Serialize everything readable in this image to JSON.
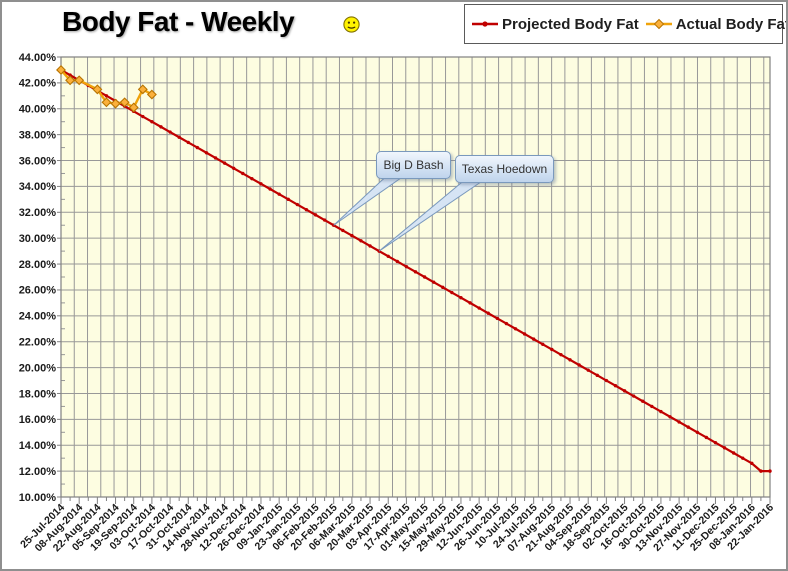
{
  "title": "Body Fat - Weekly",
  "icons": {
    "title_emoticon": "smiley-face"
  },
  "legend": {
    "position": "top-right",
    "items": [
      {
        "label": "Projected Body Fat",
        "marker": "line-dot"
      },
      {
        "label": "Actual Body Fat",
        "marker": "line-diamond"
      }
    ]
  },
  "chart_data": {
    "type": "line",
    "title": "Body Fat - Weekly",
    "x_axis": {
      "unit": "weeks since 25-Jul-2014",
      "tick_interval_weeks": 2,
      "tick_labels": [
        "25-Jul-2014",
        "08-Aug-2014",
        "22-Aug-2014",
        "05-Sep-2014",
        "19-Sep-2014",
        "03-Oct-2014",
        "17-Oct-2014",
        "31-Oct-2014",
        "14-Nov-2014",
        "28-Nov-2014",
        "12-Dec-2014",
        "26-Dec-2014",
        "09-Jan-2015",
        "23-Jan-2015",
        "06-Feb-2015",
        "20-Feb-2015",
        "06-Mar-2015",
        "20-Mar-2015",
        "03-Apr-2015",
        "17-Apr-2015",
        "01-May-2015",
        "15-May-2015",
        "29-May-2015",
        "12-Jun-2015",
        "26-Jun-2015",
        "10-Jul-2015",
        "24-Jul-2015",
        "07-Aug-2015",
        "21-Aug-2015",
        "04-Sep-2015",
        "18-Sep-2015",
        "02-Oct-2015",
        "16-Oct-2015",
        "30-Oct-2015",
        "13-Nov-2015",
        "27-Nov-2015",
        "11-Dec-2015",
        "25-Dec-2015",
        "08-Jan-2016",
        "22-Jan-2016"
      ]
    },
    "y_axis": {
      "min": 10,
      "max": 44,
      "step": 2,
      "format": "percent-2dp",
      "tick_labels": [
        "44.00%",
        "42.00%",
        "40.00%",
        "38.00%",
        "36.00%",
        "34.00%",
        "32.00%",
        "30.00%",
        "28.00%",
        "26.00%",
        "24.00%",
        "22.00%",
        "20.00%",
        "18.00%",
        "16.00%",
        "14.00%",
        "12.00%",
        "10.00%"
      ]
    },
    "grid": true,
    "plot_bg_color": "#FDFDE1",
    "grid_color": "#989898",
    "series": [
      {
        "name": "Projected Body Fat",
        "marker": "dot",
        "color": "#C00000",
        "x_week_start": 0,
        "x_week_step": 1,
        "values": [
          43.0,
          42.6,
          42.2,
          41.8,
          41.4,
          41.0,
          40.6,
          40.2,
          39.8,
          39.4,
          39.0,
          38.6,
          38.2,
          37.8,
          37.4,
          37.0,
          36.6,
          36.2,
          35.8,
          35.4,
          35.0,
          34.6,
          34.2,
          33.8,
          33.4,
          33.0,
          32.6,
          32.2,
          31.8,
          31.4,
          31.0,
          30.6,
          30.2,
          29.8,
          29.4,
          29.0,
          28.6,
          28.2,
          27.8,
          27.4,
          27.0,
          26.6,
          26.2,
          25.8,
          25.4,
          25.0,
          24.6,
          24.2,
          23.8,
          23.4,
          23.0,
          22.6,
          22.2,
          21.8,
          21.4,
          21.0,
          20.6,
          20.2,
          19.8,
          19.4,
          19.0,
          18.6,
          18.2,
          17.8,
          17.4,
          17.0,
          16.6,
          16.2,
          15.8,
          15.4,
          15.0,
          14.6,
          14.2,
          13.8,
          13.4,
          13.0,
          12.6,
          12.0,
          12.0
        ]
      },
      {
        "name": "Actual Body Fat",
        "marker": "diamond",
        "color": "#F0A30A",
        "marker_fill": "#FBB03B",
        "marker_stroke": "#B87400",
        "x_weeks": [
          0,
          1,
          2,
          4,
          5,
          6,
          7,
          8,
          9,
          10
        ],
        "values": [
          43.0,
          42.2,
          42.2,
          41.5,
          40.5,
          40.4,
          40.5,
          40.1,
          41.5,
          41.1
        ]
      }
    ],
    "annotations": [
      {
        "label": "Big D Bash",
        "week": 30,
        "value": 31.0
      },
      {
        "label": "Texas Hoedown",
        "week": 35,
        "value": 29.0
      }
    ]
  },
  "colors": {
    "callout_border": "#7A99BD",
    "callout_fill": "#D6E4F4",
    "frame_border": "#8F8F8F",
    "smiley_fill": "#FFF200",
    "smiley_stroke": "#807000"
  }
}
